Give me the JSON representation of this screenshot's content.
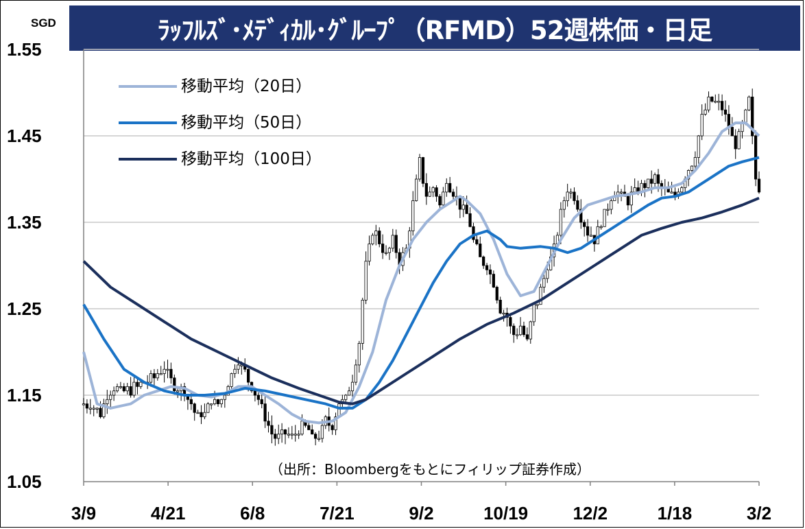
{
  "title": "ﾗｯﾌﾙｽﾞ･ﾒﾃﾞｨｶﾙ･ｸﾞﾙｰﾌﾟ（RFMD）52週株価・日足",
  "unit": "SGD",
  "source": "（出所：Bloombergをもとにフィリップ証券作成）",
  "colors": {
    "title_bg": "#1f3470",
    "ma20": "#9db4d8",
    "ma50": "#1a73c6",
    "ma100": "#1b2f5c",
    "grid": "#c8c8c8"
  },
  "chart_data": {
    "type": "candlestick",
    "yaxis": {
      "min": 1.05,
      "max": 1.55,
      "step": 0.1,
      "ticks": [
        "1.05",
        "1.15",
        "1.25",
        "1.35",
        "1.45",
        "1.55"
      ]
    },
    "xaxis": {
      "ticks": [
        "3/9",
        "4/21",
        "6/8",
        "7/21",
        "9/2",
        "10/19",
        "12/2",
        "1/18",
        "3/2"
      ]
    },
    "grid": "horizontal",
    "legend": {
      "position": "top-left",
      "entries": [
        "移動平均（20日）",
        "移動平均（50日）",
        "移動平均（100日）"
      ]
    },
    "price_path": [
      [
        0,
        1.14
      ],
      [
        2,
        1.14
      ],
      [
        3,
        1.135
      ],
      [
        5,
        1.13
      ],
      [
        7,
        1.15
      ],
      [
        9,
        1.16
      ],
      [
        12,
        1.155
      ],
      [
        16,
        1.16
      ],
      [
        20,
        1.17
      ],
      [
        22,
        1.175
      ],
      [
        24,
        1.185
      ],
      [
        26,
        1.165
      ],
      [
        28,
        1.16
      ],
      [
        30,
        1.155
      ],
      [
        32,
        1.14
      ],
      [
        34,
        1.125
      ],
      [
        36,
        1.13
      ],
      [
        38,
        1.145
      ],
      [
        40,
        1.14
      ],
      [
        42,
        1.155
      ],
      [
        44,
        1.175
      ],
      [
        46,
        1.19
      ],
      [
        48,
        1.175
      ],
      [
        50,
        1.16
      ],
      [
        52,
        1.145
      ],
      [
        54,
        1.125
      ],
      [
        56,
        1.105
      ],
      [
        58,
        1.1
      ],
      [
        60,
        1.105
      ],
      [
        62,
        1.1
      ],
      [
        64,
        1.11
      ],
      [
        66,
        1.115
      ],
      [
        68,
        1.1
      ],
      [
        70,
        1.105
      ],
      [
        72,
        1.12
      ],
      [
        74,
        1.115
      ],
      [
        76,
        1.14
      ],
      [
        78,
        1.145
      ],
      [
        80,
        1.17
      ],
      [
        82,
        1.21
      ],
      [
        83,
        1.26
      ],
      [
        84,
        1.3
      ],
      [
        86,
        1.34
      ],
      [
        88,
        1.33
      ],
      [
        90,
        1.31
      ],
      [
        92,
        1.33
      ],
      [
        94,
        1.305
      ],
      [
        96,
        1.32
      ],
      [
        98,
        1.37
      ],
      [
        100,
        1.42
      ],
      [
        102,
        1.38
      ],
      [
        104,
        1.39
      ],
      [
        106,
        1.37
      ],
      [
        108,
        1.4
      ],
      [
        110,
        1.385
      ],
      [
        112,
        1.37
      ],
      [
        114,
        1.36
      ],
      [
        116,
        1.33
      ],
      [
        118,
        1.31
      ],
      [
        120,
        1.3
      ],
      [
        122,
        1.28
      ],
      [
        124,
        1.25
      ],
      [
        126,
        1.24
      ],
      [
        128,
        1.22
      ],
      [
        130,
        1.23
      ],
      [
        132,
        1.21
      ],
      [
        134,
        1.25
      ],
      [
        136,
        1.27
      ],
      [
        138,
        1.3
      ],
      [
        140,
        1.32
      ],
      [
        142,
        1.36
      ],
      [
        144,
        1.39
      ],
      [
        146,
        1.38
      ],
      [
        148,
        1.355
      ],
      [
        150,
        1.34
      ],
      [
        152,
        1.33
      ],
      [
        154,
        1.35
      ],
      [
        156,
        1.37
      ],
      [
        158,
        1.385
      ],
      [
        160,
        1.38
      ],
      [
        162,
        1.375
      ],
      [
        164,
        1.385
      ],
      [
        166,
        1.39
      ],
      [
        168,
        1.395
      ],
      [
        170,
        1.4
      ],
      [
        172,
        1.39
      ],
      [
        174,
        1.385
      ],
      [
        176,
        1.38
      ],
      [
        178,
        1.395
      ],
      [
        180,
        1.41
      ],
      [
        182,
        1.43
      ],
      [
        184,
        1.47
      ],
      [
        186,
        1.49
      ],
      [
        188,
        1.49
      ],
      [
        190,
        1.48
      ],
      [
        192,
        1.46
      ],
      [
        194,
        1.44
      ],
      [
        196,
        1.46
      ],
      [
        198,
        1.49
      ],
      [
        200,
        1.4
      ],
      [
        201,
        1.39
      ]
    ],
    "series": [
      {
        "name": "移動平均（20日）",
        "points": [
          [
            0,
            1.2
          ],
          [
            4,
            1.14
          ],
          [
            8,
            1.135
          ],
          [
            14,
            1.14
          ],
          [
            18,
            1.15
          ],
          [
            22,
            1.155
          ],
          [
            26,
            1.16
          ],
          [
            30,
            1.158
          ],
          [
            34,
            1.15
          ],
          [
            38,
            1.148
          ],
          [
            42,
            1.152
          ],
          [
            46,
            1.16
          ],
          [
            50,
            1.16
          ],
          [
            54,
            1.15
          ],
          [
            58,
            1.14
          ],
          [
            62,
            1.128
          ],
          [
            66,
            1.12
          ],
          [
            70,
            1.118
          ],
          [
            74,
            1.12
          ],
          [
            78,
            1.13
          ],
          [
            82,
            1.16
          ],
          [
            86,
            1.2
          ],
          [
            90,
            1.26
          ],
          [
            94,
            1.3
          ],
          [
            98,
            1.33
          ],
          [
            102,
            1.35
          ],
          [
            106,
            1.365
          ],
          [
            110,
            1.375
          ],
          [
            112,
            1.38
          ],
          [
            114,
            1.375
          ],
          [
            118,
            1.36
          ],
          [
            122,
            1.33
          ],
          [
            126,
            1.29
          ],
          [
            130,
            1.265
          ],
          [
            134,
            1.27
          ],
          [
            138,
            1.3
          ],
          [
            142,
            1.33
          ],
          [
            146,
            1.355
          ],
          [
            150,
            1.37
          ],
          [
            154,
            1.375
          ],
          [
            158,
            1.38
          ],
          [
            162,
            1.382
          ],
          [
            166,
            1.385
          ],
          [
            170,
            1.39
          ],
          [
            174,
            1.39
          ],
          [
            178,
            1.395
          ],
          [
            182,
            1.41
          ],
          [
            186,
            1.43
          ],
          [
            190,
            1.455
          ],
          [
            194,
            1.465
          ],
          [
            197,
            1.465
          ],
          [
            201,
            1.45
          ]
        ]
      },
      {
        "name": "移動平均（50日）",
        "points": [
          [
            0,
            1.255
          ],
          [
            6,
            1.215
          ],
          [
            12,
            1.18
          ],
          [
            18,
            1.165
          ],
          [
            24,
            1.155
          ],
          [
            30,
            1.15
          ],
          [
            36,
            1.15
          ],
          [
            42,
            1.152
          ],
          [
            48,
            1.158
          ],
          [
            54,
            1.155
          ],
          [
            60,
            1.15
          ],
          [
            66,
            1.145
          ],
          [
            72,
            1.14
          ],
          [
            76,
            1.135
          ],
          [
            80,
            1.135
          ],
          [
            84,
            1.145
          ],
          [
            88,
            1.165
          ],
          [
            92,
            1.19
          ],
          [
            96,
            1.22
          ],
          [
            100,
            1.25
          ],
          [
            104,
            1.28
          ],
          [
            108,
            1.305
          ],
          [
            112,
            1.325
          ],
          [
            116,
            1.335
          ],
          [
            120,
            1.34
          ],
          [
            124,
            1.33
          ],
          [
            126,
            1.322
          ],
          [
            130,
            1.32
          ],
          [
            136,
            1.322
          ],
          [
            140,
            1.32
          ],
          [
            144,
            1.315
          ],
          [
            148,
            1.32
          ],
          [
            152,
            1.33
          ],
          [
            156,
            1.34
          ],
          [
            160,
            1.35
          ],
          [
            164,
            1.36
          ],
          [
            168,
            1.37
          ],
          [
            172,
            1.378
          ],
          [
            176,
            1.38
          ],
          [
            180,
            1.385
          ],
          [
            184,
            1.395
          ],
          [
            188,
            1.405
          ],
          [
            192,
            1.415
          ],
          [
            196,
            1.42
          ],
          [
            201,
            1.425
          ]
        ]
      },
      {
        "name": "移動平均（100日）",
        "points": [
          [
            0,
            1.305
          ],
          [
            8,
            1.275
          ],
          [
            16,
            1.255
          ],
          [
            24,
            1.235
          ],
          [
            32,
            1.215
          ],
          [
            40,
            1.2
          ],
          [
            48,
            1.185
          ],
          [
            56,
            1.17
          ],
          [
            64,
            1.158
          ],
          [
            70,
            1.15
          ],
          [
            76,
            1.142
          ],
          [
            80,
            1.14
          ],
          [
            84,
            1.145
          ],
          [
            90,
            1.16
          ],
          [
            96,
            1.175
          ],
          [
            104,
            1.195
          ],
          [
            112,
            1.215
          ],
          [
            120,
            1.232
          ],
          [
            128,
            1.245
          ],
          [
            136,
            1.26
          ],
          [
            144,
            1.28
          ],
          [
            152,
            1.3
          ],
          [
            160,
            1.32
          ],
          [
            166,
            1.335
          ],
          [
            172,
            1.343
          ],
          [
            178,
            1.35
          ],
          [
            184,
            1.355
          ],
          [
            190,
            1.362
          ],
          [
            196,
            1.37
          ],
          [
            201,
            1.378
          ]
        ]
      }
    ]
  }
}
